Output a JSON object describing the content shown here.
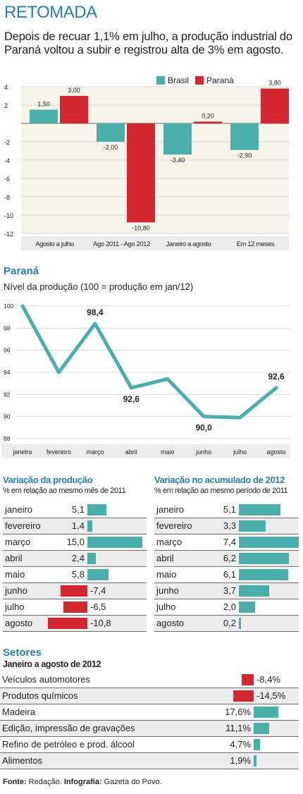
{
  "header": {
    "title": "RETOMADA",
    "subtitle": "Depois de recuar 1,1% em julho, a produção industrial do Paraná voltou a subir e registrou alta de 3% em agosto."
  },
  "colors": {
    "brasil": "#4aafab",
    "parana": "#d22630",
    "accent": "#2a7fa6",
    "shade": "#ececec"
  },
  "chart_data": [
    {
      "type": "bar",
      "categories": [
        "Agosto a julho",
        "Ago 2011 - Ago 2012",
        "Janeiro a agosto",
        "Em 12 meses"
      ],
      "series": [
        {
          "name": "Brasil",
          "values": [
            1.5,
            -2.0,
            -3.4,
            -2.9
          ],
          "labels": [
            "1,50",
            "-2,00",
            "-3,40",
            "-2,90"
          ]
        },
        {
          "name": "Paraná",
          "values": [
            3.0,
            -10.8,
            0.2,
            3.8
          ],
          "labels": [
            "3,00",
            "-10,80",
            "0,20",
            "3,80"
          ]
        }
      ],
      "ylim": [
        -12,
        4
      ],
      "yticks": [
        4,
        2,
        -2,
        -4,
        -6,
        -8,
        -10,
        -12
      ],
      "legend": "top-right",
      "grid": true
    },
    {
      "type": "line",
      "title": "Paraná",
      "subtitle": "Nível da produção (100 = produção em jan/12)",
      "categories": [
        "janeiro",
        "fevereiro",
        "março",
        "abril",
        "maio",
        "junho",
        "julho",
        "agosto"
      ],
      "values": [
        100,
        94.0,
        98.4,
        92.6,
        93.4,
        90.0,
        89.9,
        92.6
      ],
      "point_labels": {
        "2": "98,4",
        "3": "92,6",
        "5": "90,0",
        "7": "92,6"
      },
      "ylim": [
        88,
        100
      ],
      "yticks": [
        100,
        98,
        96,
        94,
        92,
        90,
        88
      ],
      "grid": true
    },
    {
      "type": "bar",
      "title": "Variação da produção",
      "subtitle": "% em relação ao mesmo mês de 2011",
      "categories": [
        "janeiro",
        "fevereiro",
        "março",
        "abril",
        "maio",
        "junho",
        "julho",
        "agosto"
      ],
      "values": [
        5.1,
        1.4,
        15.0,
        2.4,
        5.8,
        -7.4,
        -6.5,
        -10.8
      ],
      "labels": [
        "5,1",
        "1,4",
        "15,0",
        "2,4",
        "5,8",
        "-7,4",
        "-6,5",
        "-10,8"
      ]
    },
    {
      "type": "bar",
      "title": "Variação no acumulado de 2012",
      "subtitle": "% em relação ao mesmo período de 2011",
      "categories": [
        "janeiro",
        "fevereiro",
        "março",
        "abril",
        "maio",
        "junho",
        "julho",
        "agosto"
      ],
      "values": [
        5.1,
        3.3,
        7.4,
        6.2,
        6.1,
        3.7,
        2.0,
        0.2
      ],
      "labels": [
        "5,1",
        "3,3",
        "7,4",
        "6,2",
        "6,1",
        "3,7",
        "2,0",
        "0,2"
      ]
    },
    {
      "type": "bar",
      "title": "Setores",
      "subtitle": "Janeiro a agosto de 2012",
      "categories": [
        "Veículos automotores",
        "Produtos químicos",
        "Madeira",
        "Edição, impressão de gravações",
        "Refino de petróleo e prod. álcool",
        "Alimentos"
      ],
      "values": [
        -8.4,
        -14.5,
        17.6,
        11.1,
        4.7,
        1.9
      ],
      "labels": [
        "-8,4%",
        "-14,5%",
        "17,6%",
        "11,1%",
        "4,7%",
        "1,9%"
      ]
    }
  ],
  "footer": {
    "source_label": "Fonte:",
    "source": "Redação.",
    "graphic_label": "Infografia:",
    "graphic": "Gazeta do Povo."
  }
}
